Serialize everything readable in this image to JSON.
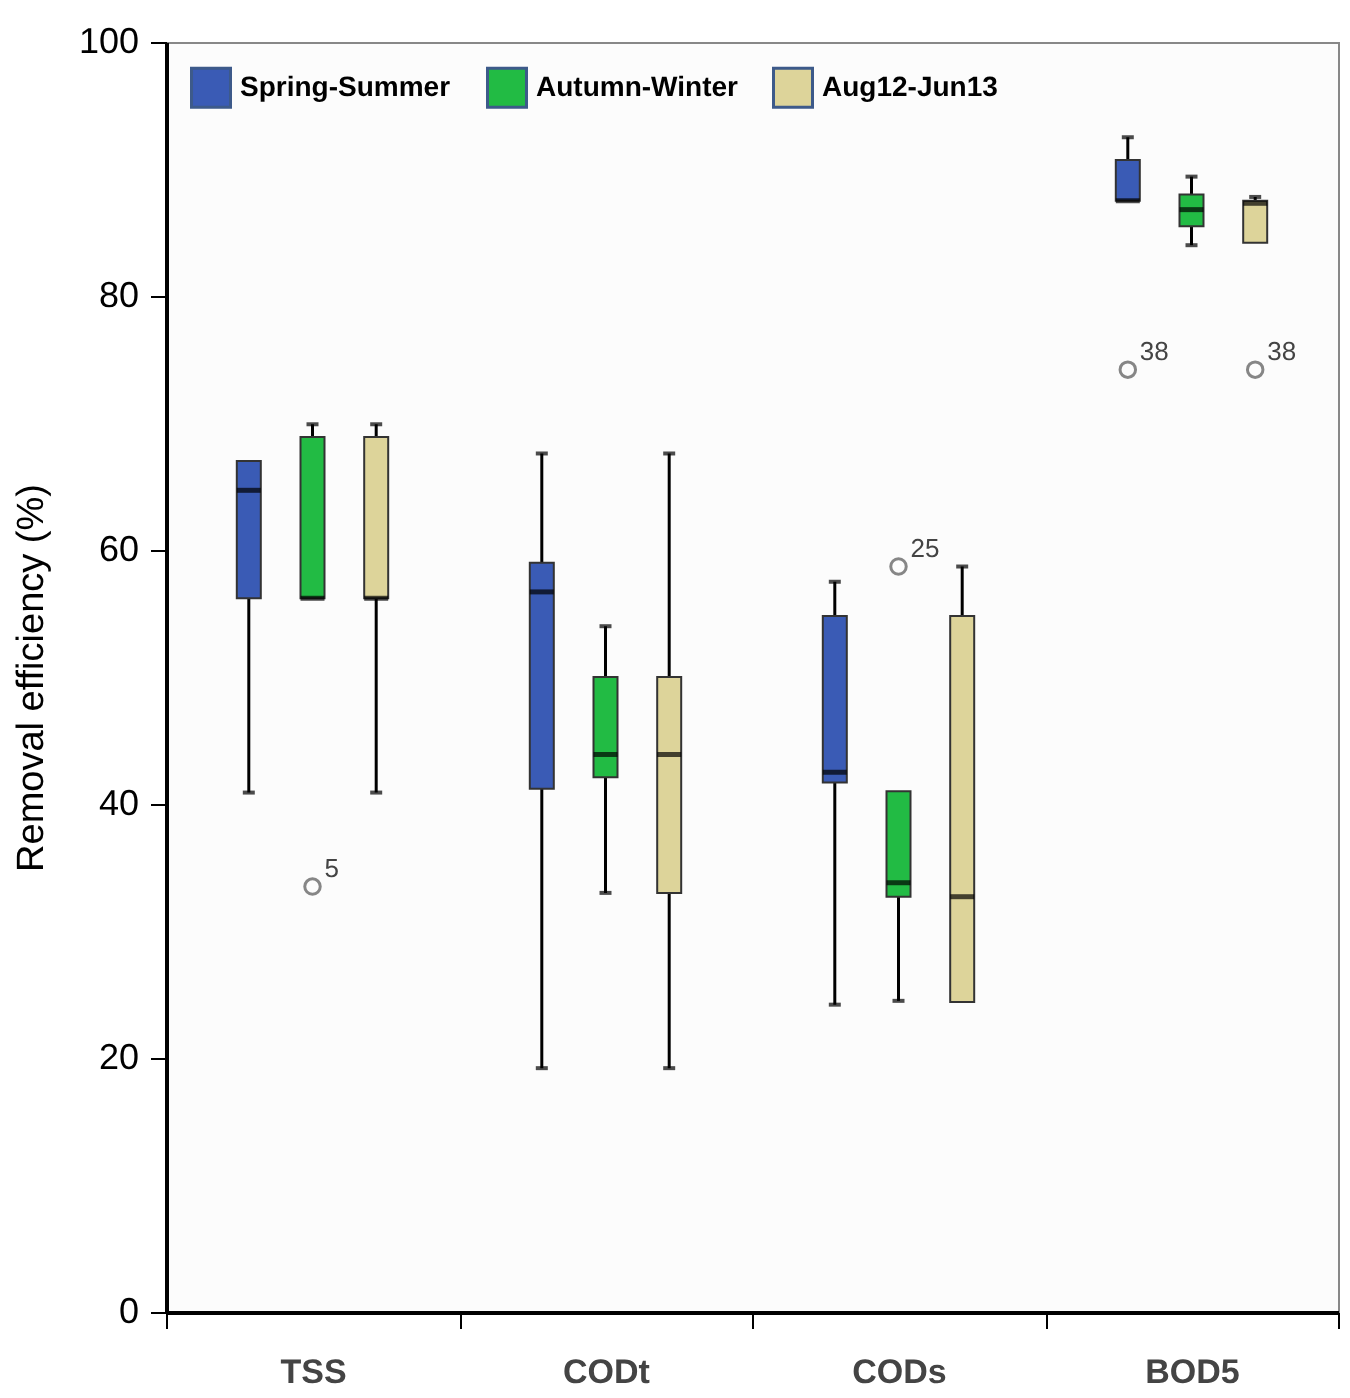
{
  "chart_data": {
    "type": "box",
    "ylabel": "Removal efficiency (%)",
    "categories": [
      "TSS",
      "CODt",
      "CODs",
      "BOD5"
    ],
    "ylim": [
      0,
      100
    ],
    "yticks": [
      0,
      20,
      40,
      60,
      80,
      100
    ],
    "grid": false,
    "legend": "top left",
    "series": [
      {
        "name": "Spring-Summer",
        "color": "#3a5bb5",
        "boxes": [
          {
            "low": 40.9,
            "q1": 56.2,
            "median": 64.7,
            "q3": 67.0,
            "high": 67.0
          },
          {
            "low": 19.2,
            "q1": 41.2,
            "median": 56.7,
            "q3": 59.0,
            "high": 67.6
          },
          {
            "low": 24.2,
            "q1": 41.7,
            "median": 42.5,
            "q3": 54.8,
            "high": 57.5
          },
          {
            "low": 87.5,
            "q1": 87.5,
            "median": 87.5,
            "q3": 90.7,
            "high": 92.5,
            "outliers": [
              74.2
            ]
          }
        ]
      },
      {
        "name": "Autumn-Winter",
        "color": "#22bb44",
        "boxes": [
          {
            "low": 56.2,
            "q1": 56.2,
            "median": 56.2,
            "q3": 68.9,
            "high": 69.9,
            "outliers": [
              33.5
            ]
          },
          {
            "low": 33.0,
            "q1": 42.1,
            "median": 43.9,
            "q3": 50.0,
            "high": 54.0
          },
          {
            "low": 24.5,
            "q1": 32.7,
            "median": 33.8,
            "q3": 41.0,
            "high": 41.0,
            "outliers": [
              58.7
            ]
          },
          {
            "low": 84.0,
            "q1": 85.5,
            "median": 86.8,
            "q3": 88.0,
            "high": 89.4
          }
        ]
      },
      {
        "name": "Aug12-Jun13",
        "color": "#ddd49a",
        "boxes": [
          {
            "low": 40.9,
            "q1": 56.2,
            "median": 56.2,
            "q3": 68.9,
            "high": 69.9
          },
          {
            "low": 19.2,
            "q1": 33.0,
            "median": 43.9,
            "q3": 50.0,
            "high": 67.6
          },
          {
            "low": 24.4,
            "q1": 24.4,
            "median": 32.7,
            "q3": 54.8,
            "high": 58.7
          },
          {
            "low": 84.2,
            "q1": 84.2,
            "median": 87.3,
            "q3": 87.5,
            "high": 87.8,
            "outliers": [
              74.2
            ]
          }
        ]
      }
    ],
    "annotations": [
      "38",
      "5",
      "25",
      "38"
    ]
  }
}
